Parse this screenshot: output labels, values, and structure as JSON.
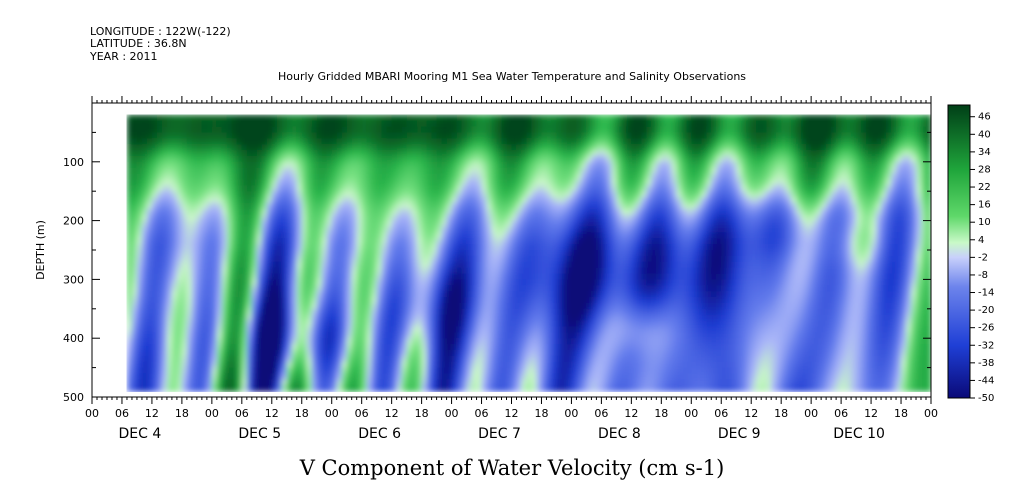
{
  "header": {
    "line1": "LONGITUDE : 122W(-122)",
    "line2": "LATITUDE : 36.8N",
    "line3": "YEAR : 2011"
  },
  "chart_data": {
    "type": "heatmap",
    "title": "Hourly Gridded MBARI Mooring M1 Sea Water Temperature and Salinity Observations",
    "xlabel": "V Component of Water Velocity (cm s-1)",
    "ylabel": "DEPTH (m)",
    "x_hour_ticks": [
      "00",
      "06",
      "12",
      "18",
      "00",
      "06",
      "12",
      "18",
      "00",
      "06",
      "12",
      "18",
      "00",
      "06",
      "12",
      "18",
      "00",
      "06",
      "12",
      "18",
      "00",
      "06",
      "12",
      "18",
      "00",
      "06",
      "12",
      "18",
      "00"
    ],
    "x_day_labels": [
      "DEC 4",
      "DEC 5",
      "DEC 6",
      "DEC 7",
      "DEC 8",
      "DEC 9",
      "DEC 10"
    ],
    "y_ticks": [
      100,
      200,
      300,
      400,
      500
    ],
    "y_range": [
      0,
      500
    ],
    "data_depth_range": [
      20,
      485
    ],
    "x_data_start_hour": 7,
    "colorbar_labels": [
      "46",
      "40",
      "34",
      "28",
      "22",
      "16",
      "10",
      "4",
      "-2",
      "-8",
      "-14",
      "-20",
      "-26",
      "-32",
      "-38",
      "-44",
      "-50"
    ],
    "colorbar_range": [
      -50,
      50
    ],
    "colors": {
      "dark_green": "#00441b",
      "green": "#2db84d",
      "light_green": "#9ff3a6",
      "blue": "#7b8ef0",
      "dark_blue": "#1230c8"
    },
    "structure": {
      "surface_layer": "green, positive 10 to 46, depth about 20-100 m",
      "deep_layer": "blue, negative -2 to -30, depth about 150-485 m",
      "deepest_negative_zones": [
        "DEC 6 18h 350-450 m",
        "DEC 7 20h 300-400 m",
        "DEC 9 00h 250-400 m"
      ]
    }
  }
}
